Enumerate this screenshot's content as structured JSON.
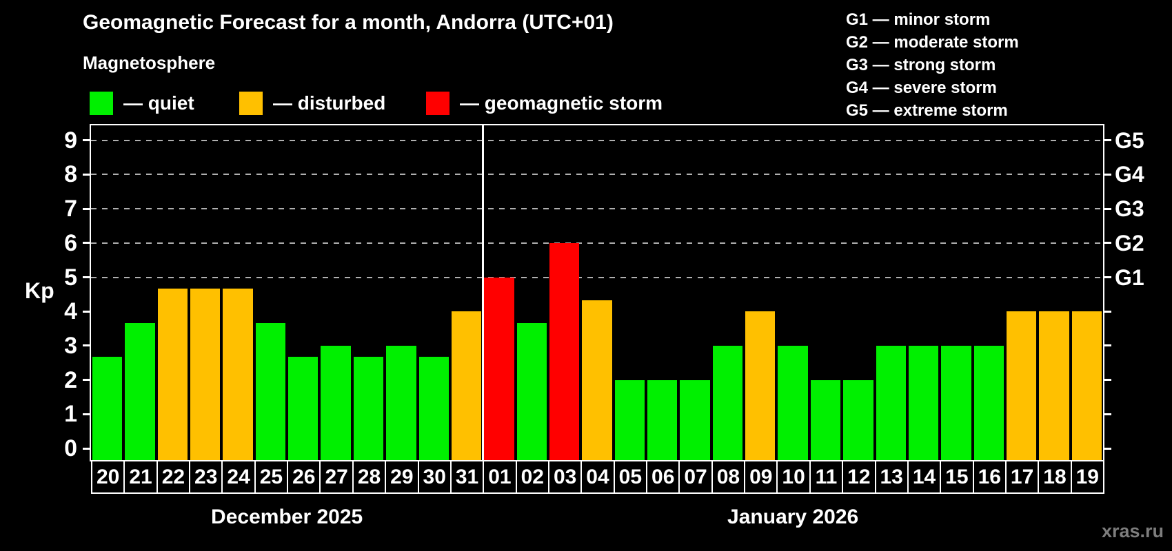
{
  "header": {
    "title": "Geomagnetic Forecast for a month, Andorra (UTC+01)",
    "subtitle": "Magnetosphere"
  },
  "legend": {
    "items": [
      {
        "key": "quiet",
        "label": "— quiet"
      },
      {
        "key": "disturbed",
        "label": "— disturbed"
      },
      {
        "key": "storm",
        "label": "— geomagnetic storm"
      }
    ]
  },
  "g_legend": {
    "items": [
      "G1 — minor storm",
      "G2 — moderate storm",
      "G3 — strong storm",
      "G4 — severe storm",
      "G5 — extreme storm"
    ]
  },
  "footer": {
    "watermark": "xras.ru"
  },
  "chart_data": {
    "type": "bar",
    "title": "Geomagnetic Forecast for a month, Andorra (UTC+01)",
    "ylabel": "Kp",
    "ylim": [
      0,
      9
    ],
    "yticks": [
      0,
      1,
      2,
      3,
      4,
      5,
      6,
      7,
      8,
      9
    ],
    "gridlines_at_kp": [
      5,
      6,
      7,
      8,
      9
    ],
    "right_axis": [
      {
        "kp": 5,
        "label": "G1"
      },
      {
        "kp": 6,
        "label": "G2"
      },
      {
        "kp": 7,
        "label": "G3"
      },
      {
        "kp": 8,
        "label": "G4"
      },
      {
        "kp": 9,
        "label": "G5"
      }
    ],
    "months": [
      {
        "label": "December 2025",
        "start_index": 0,
        "days": 12
      },
      {
        "label": "January 2026",
        "start_index": 12,
        "days": 19
      }
    ],
    "categories": [
      "20",
      "21",
      "22",
      "23",
      "24",
      "25",
      "26",
      "27",
      "28",
      "29",
      "30",
      "31",
      "01",
      "02",
      "03",
      "04",
      "05",
      "06",
      "07",
      "08",
      "09",
      "10",
      "11",
      "12",
      "13",
      "14",
      "15",
      "16",
      "17",
      "18",
      "19"
    ],
    "values": [
      2.67,
      3.67,
      4.67,
      4.67,
      4.67,
      3.67,
      2.67,
      3,
      2.67,
      3,
      2.67,
      4,
      5,
      3.67,
      6,
      4.33,
      2,
      2,
      2,
      3,
      4,
      3,
      2,
      2,
      3,
      3,
      3,
      3,
      4,
      4,
      4
    ],
    "states": [
      "quiet",
      "quiet",
      "disturbed",
      "disturbed",
      "disturbed",
      "quiet",
      "quiet",
      "quiet",
      "quiet",
      "quiet",
      "quiet",
      "disturbed",
      "storm",
      "quiet",
      "storm",
      "disturbed",
      "quiet",
      "quiet",
      "quiet",
      "quiet",
      "disturbed",
      "quiet",
      "quiet",
      "quiet",
      "quiet",
      "quiet",
      "quiet",
      "quiet",
      "disturbed",
      "disturbed",
      "disturbed"
    ],
    "colors": {
      "quiet": "#00f000",
      "disturbed": "#ffc000",
      "storm": "#ff0000"
    }
  }
}
